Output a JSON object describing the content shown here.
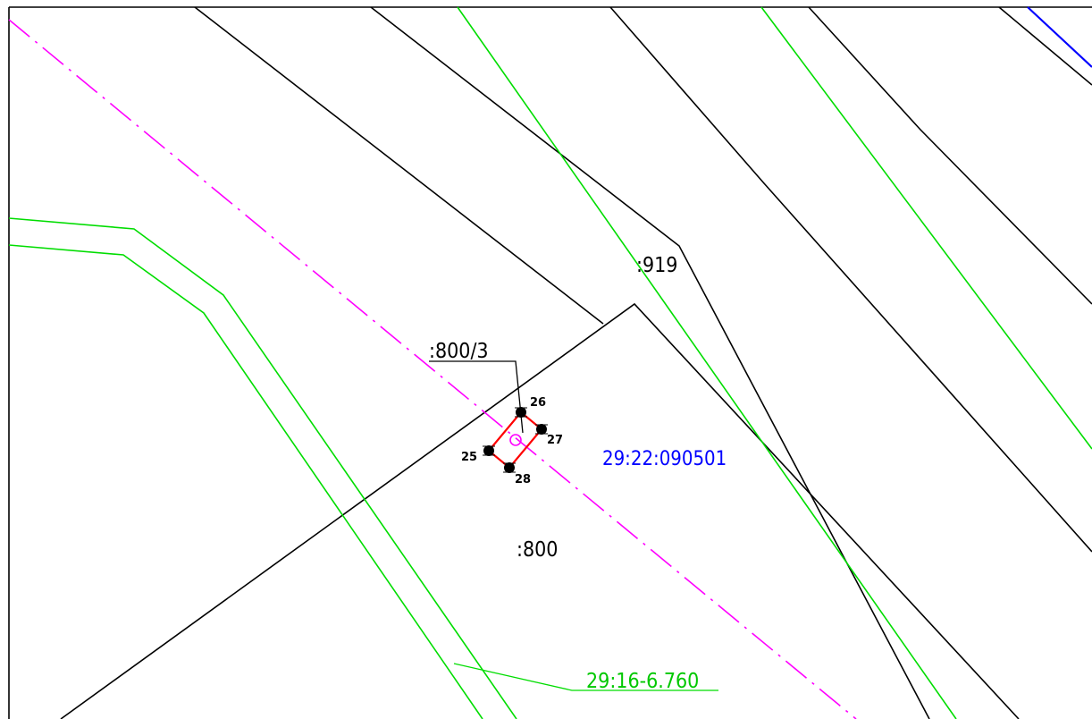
{
  "map": {
    "labels": {
      "parcel_919": ":919",
      "parcel_800_3": ":800/3",
      "parcel_800": ":800",
      "quarter": "29:22:090501",
      "zone": "29:16-6.760"
    },
    "points": [
      {
        "id": "25",
        "label": "25"
      },
      {
        "id": "26",
        "label": "26"
      },
      {
        "id": "27",
        "label": "27"
      },
      {
        "id": "28",
        "label": "28"
      }
    ],
    "colors": {
      "boundary": "#000000",
      "zone": "#00dd00",
      "quarter": "#0000ff",
      "axis": "#ff00ff",
      "parcel": "#ff0000"
    }
  }
}
